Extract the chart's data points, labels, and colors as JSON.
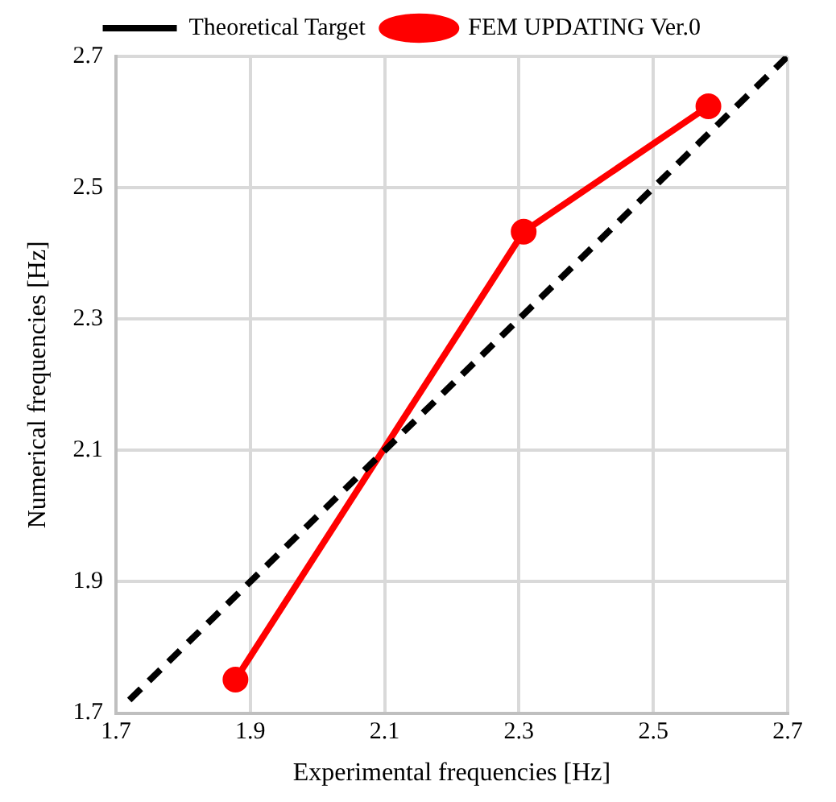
{
  "chart_data": {
    "type": "line",
    "xlabel": "Experimental frequencies [Hz]",
    "ylabel": "Numerical frequencies [Hz]",
    "xlim": [
      1.7,
      2.7
    ],
    "xticks": [
      1.7,
      1.9,
      2.1,
      2.3,
      2.5,
      2.7
    ],
    "ylim": [
      1.7,
      2.7
    ],
    "yticks": [
      1.7,
      1.9,
      2.1,
      2.3,
      2.5,
      2.7
    ],
    "grid": true,
    "legend": "top",
    "series": [
      {
        "name": "Theoretical Target",
        "color": "#000000",
        "x": [
          1.72,
          2.7
        ],
        "values": [
          1.72,
          2.7
        ],
        "line_style": "dashed",
        "marker": "none"
      },
      {
        "name": "FEM UPDATING Ver.0",
        "color": "#ff0000",
        "x": [
          1.878,
          2.307,
          2.582
        ],
        "values": [
          1.751,
          2.433,
          2.624
        ],
        "line_style": "solid",
        "marker": "circle"
      }
    ]
  }
}
